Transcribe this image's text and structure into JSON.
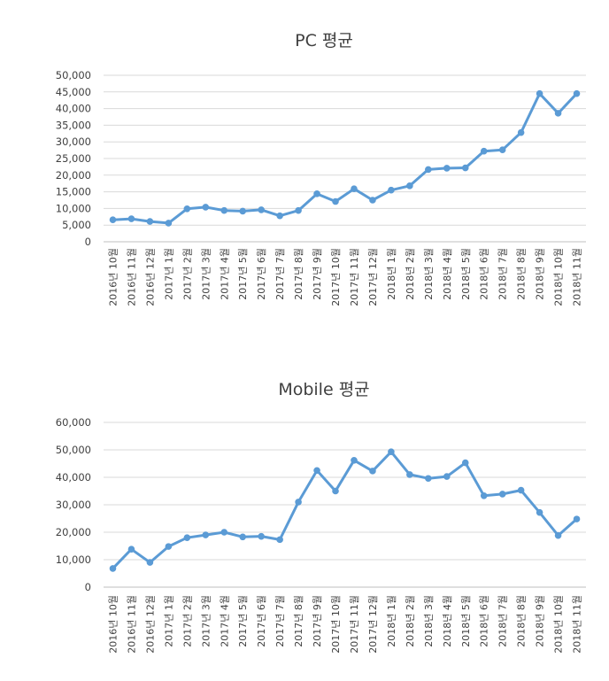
{
  "chart_data": [
    {
      "type": "line",
      "title": "PC 평균",
      "xlabel": "",
      "ylabel": "",
      "ylim": [
        0,
        50000
      ],
      "yticks": [
        0,
        5000,
        10000,
        15000,
        20000,
        25000,
        30000,
        35000,
        40000,
        45000,
        50000
      ],
      "ytick_labels": [
        "0",
        "5,000",
        "10,000",
        "15,000",
        "20,000",
        "25,000",
        "30,000",
        "35,000",
        "40,000",
        "45,000",
        "50,000"
      ],
      "grid": true,
      "legend": "none",
      "color": "#5b9bd5",
      "categories": [
        "2016년 10월",
        "2016년 11월",
        "2016년 12월",
        "2017년 1월",
        "2017년 2월",
        "2017년 3월",
        "2017년 4월",
        "2017년 5월",
        "2017년 6월",
        "2017년 7월",
        "2017년 8월",
        "2017년 9월",
        "2017년 10월",
        "2017년 11월",
        "2017년 12월",
        "2018년 1월",
        "2018년 2월",
        "2018년 3월",
        "2018년 4월",
        "2018년 5월",
        "2018년 6월",
        "2018년 7월",
        "2018년 8월",
        "2018년 9월",
        "2018년 10월",
        "2018년 11월"
      ],
      "values": [
        6600,
        6900,
        6100,
        5600,
        9900,
        10400,
        9400,
        9200,
        9600,
        7800,
        9400,
        14400,
        12100,
        15900,
        12500,
        15500,
        16800,
        21700,
        22100,
        22200,
        27200,
        27600,
        32800,
        44500,
        38600,
        44500
      ]
    },
    {
      "type": "line",
      "title": "Mobile 평균",
      "xlabel": "",
      "ylabel": "",
      "ylim": [
        0,
        60000
      ],
      "yticks": [
        0,
        10000,
        20000,
        30000,
        40000,
        50000,
        60000
      ],
      "ytick_labels": [
        "0",
        "10,000",
        "20,000",
        "30,000",
        "40,000",
        "50,000",
        "60,000"
      ],
      "grid": true,
      "legend": "none",
      "color": "#5b9bd5",
      "categories": [
        "2016년 10월",
        "2016년 11월",
        "2016년 12월",
        "2017년 1월",
        "2017년 2월",
        "2017년 3월",
        "2017년 4월",
        "2017년 5월",
        "2017년 6월",
        "2017년 7월",
        "2017년 8월",
        "2017년 9월",
        "2017년 10월",
        "2017년 11월",
        "2017년 12월",
        "2018년 1월",
        "2018년 2월",
        "2018년 3월",
        "2018년 4월",
        "2018년 5월",
        "2018년 6월",
        "2018년 7월",
        "2018년 8월",
        "2018년 9월",
        "2018년 10월",
        "2018년 11월"
      ],
      "values": [
        6800,
        13800,
        9000,
        14800,
        18000,
        19000,
        20000,
        18300,
        18500,
        17300,
        31000,
        42500,
        35000,
        46200,
        42300,
        49300,
        41000,
        39600,
        40300,
        45300,
        33300,
        33900,
        35300,
        27200,
        18800,
        24800
      ]
    }
  ]
}
